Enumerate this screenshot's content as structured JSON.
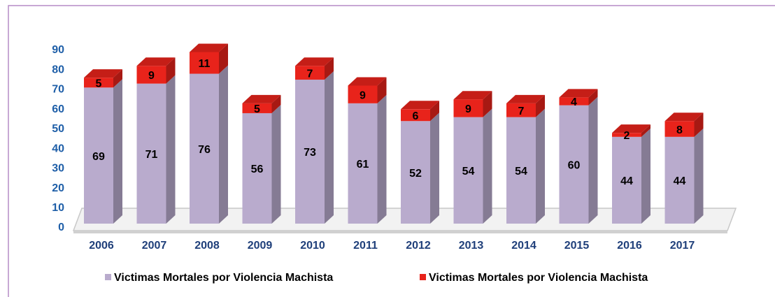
{
  "chart_data": {
    "type": "bar3d_stacked",
    "categories": [
      "2006",
      "2007",
      "2008",
      "2009",
      "2010",
      "2011",
      "2012",
      "2013",
      "2014",
      "2015",
      "2016",
      "2017"
    ],
    "series": [
      {
        "name": "Victimas Mortales por Violencia Machista",
        "color": "#b9abcd",
        "values": [
          69,
          71,
          76,
          56,
          73,
          61,
          52,
          54,
          54,
          60,
          44,
          44
        ]
      },
      {
        "name": "Victimas Mortales por Violencia Machista",
        "color": "#e8231b",
        "values": [
          5,
          9,
          11,
          5,
          7,
          9,
          6,
          9,
          7,
          4,
          2,
          8
        ]
      }
    ],
    "ylim": [
      0,
      90
    ],
    "yticks": [
      0,
      10,
      20,
      30,
      40,
      50,
      60,
      70,
      80,
      90
    ]
  }
}
